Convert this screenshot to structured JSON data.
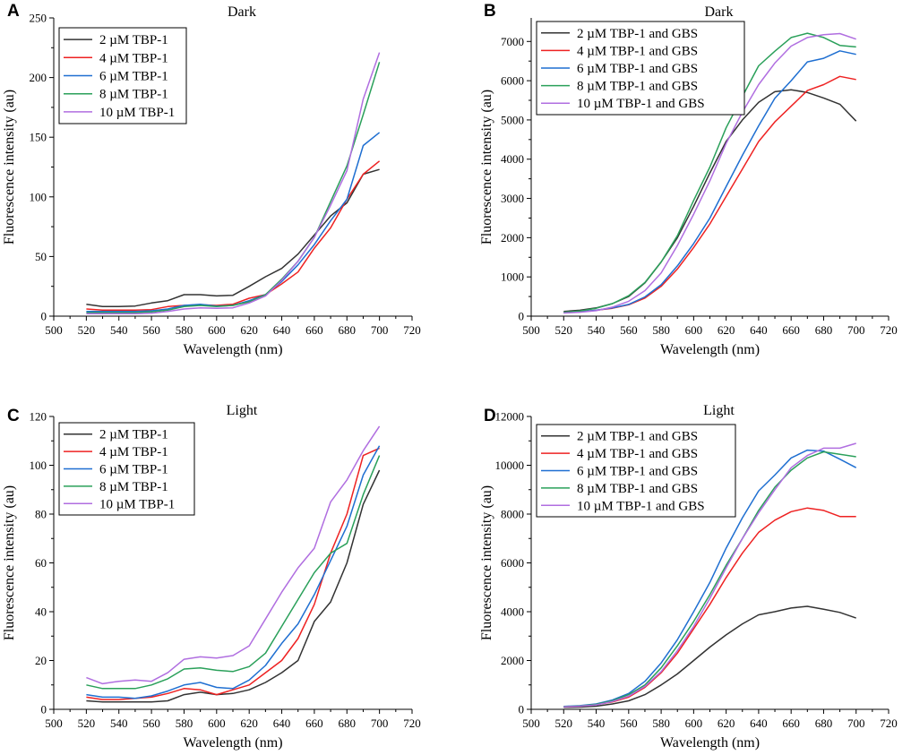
{
  "chart_data": [
    {
      "panel": "A",
      "type": "line",
      "title": "Dark",
      "xlabel": "Wavelength (nm)",
      "ylabel": "Fluorescence intensity (au)",
      "xlim": [
        500,
        720
      ],
      "ylim": [
        0,
        250
      ],
      "xticks": [
        500,
        520,
        540,
        560,
        580,
        600,
        620,
        640,
        660,
        680,
        700,
        720
      ],
      "yticks": [
        0,
        50,
        100,
        150,
        200,
        250
      ],
      "legend_position": "top-left",
      "x": [
        520,
        530,
        540,
        550,
        560,
        570,
        580,
        590,
        600,
        610,
        620,
        630,
        640,
        650,
        660,
        670,
        680,
        690,
        700
      ],
      "series": [
        {
          "name": "2 µM TBP-1",
          "color": "#333333",
          "values": [
            10,
            8,
            8,
            8.5,
            11,
            13,
            18,
            18,
            17,
            17.5,
            25,
            33,
            40,
            52,
            68,
            84,
            95,
            119,
            123
          ]
        },
        {
          "name": "4 µM TBP-1",
          "color": "#ee2222",
          "values": [
            6,
            5,
            5,
            5,
            5.5,
            8,
            9,
            9.5,
            9,
            10,
            15,
            18,
            27,
            37,
            57,
            74,
            98,
            119,
            130
          ]
        },
        {
          "name": "6 µM TBP-1",
          "color": "#1f6fd1",
          "values": [
            4,
            4,
            4,
            4,
            4.5,
            6,
            9,
            10,
            8.5,
            9,
            13,
            18,
            29,
            43,
            60,
            80,
            98,
            143,
            154
          ]
        },
        {
          "name": "8 µM TBP-1",
          "color": "#2aa05a",
          "values": [
            3,
            3,
            3,
            3,
            3.5,
            5,
            8,
            9,
            8,
            9,
            12,
            18,
            31,
            46,
            66,
            96,
            126,
            169,
            213
          ]
        },
        {
          "name": "10 µM TBP-1",
          "color": "#b06ee0",
          "values": [
            2,
            2,
            2,
            2,
            2.5,
            4,
            6,
            7,
            6.5,
            7,
            11,
            17,
            30,
            46,
            66,
            93,
            122,
            182,
            221
          ]
        }
      ]
    },
    {
      "panel": "B",
      "type": "line",
      "title": "Dark",
      "xlabel": "Wavelength (nm)",
      "ylabel": "Fluorescence intensity (au)",
      "xlim": [
        500,
        720
      ],
      "ylim": [
        0,
        7600
      ],
      "xticks": [
        500,
        520,
        540,
        560,
        580,
        600,
        620,
        640,
        660,
        680,
        700,
        720
      ],
      "yticks": [
        0,
        1000,
        2000,
        3000,
        4000,
        5000,
        6000,
        7000
      ],
      "legend_position": "top-left",
      "x": [
        520,
        530,
        540,
        550,
        560,
        570,
        580,
        590,
        600,
        610,
        620,
        630,
        640,
        650,
        660,
        670,
        680,
        690,
        700
      ],
      "series": [
        {
          "name": "2 µM TBP-1 and GBS",
          "color": "#333333",
          "values": [
            120,
            150,
            210,
            320,
            500,
            850,
            1380,
            2000,
            2800,
            3650,
            4450,
            5000,
            5450,
            5720,
            5770,
            5700,
            5560,
            5400,
            4970
          ]
        },
        {
          "name": "4 µM TBP-1 and GBS",
          "color": "#ee2222",
          "values": [
            90,
            110,
            150,
            200,
            290,
            460,
            760,
            1200,
            1750,
            2350,
            3050,
            3750,
            4450,
            4950,
            5350,
            5750,
            5900,
            6110,
            6030
          ]
        },
        {
          "name": "6 µM TBP-1 and GBS",
          "color": "#1f6fd1",
          "values": [
            90,
            110,
            150,
            210,
            300,
            490,
            800,
            1280,
            1850,
            2500,
            3300,
            4100,
            4850,
            5550,
            6000,
            6480,
            6570,
            6760,
            6670
          ]
        },
        {
          "name": "8 µM TBP-1 and GBS",
          "color": "#2aa05a",
          "values": [
            100,
            130,
            200,
            320,
            520,
            860,
            1380,
            2050,
            2950,
            3800,
            4800,
            5600,
            6380,
            6750,
            7100,
            7210,
            7100,
            6900,
            6860
          ]
        },
        {
          "name": "10 µM TBP-1 and GBS",
          "color": "#b06ee0",
          "values": [
            80,
            100,
            140,
            230,
            380,
            650,
            1100,
            1800,
            2600,
            3450,
            4400,
            5200,
            5900,
            6450,
            6880,
            7100,
            7170,
            7200,
            7060
          ]
        }
      ]
    },
    {
      "panel": "C",
      "type": "line",
      "title": "Light",
      "xlabel": "Wavelength (nm)",
      "ylabel": "Fluorescence intensity (au)",
      "xlim": [
        500,
        720
      ],
      "ylim": [
        0,
        120
      ],
      "xticks": [
        500,
        520,
        540,
        560,
        580,
        600,
        620,
        640,
        660,
        680,
        700,
        720
      ],
      "yticks": [
        0,
        20,
        40,
        60,
        80,
        100,
        120
      ],
      "legend_position": "top-left",
      "x": [
        520,
        530,
        540,
        550,
        560,
        570,
        580,
        590,
        600,
        610,
        620,
        630,
        640,
        650,
        660,
        670,
        680,
        690,
        700
      ],
      "series": [
        {
          "name": "2 µM TBP-1",
          "color": "#333333",
          "values": [
            3.5,
            3,
            3,
            3,
            3,
            3.5,
            6,
            7,
            6,
            6.5,
            8,
            11,
            15,
            20,
            36,
            44,
            60,
            84,
            98
          ]
        },
        {
          "name": "4 µM TBP-1",
          "color": "#ee2222",
          "values": [
            5,
            4,
            4,
            4.5,
            5,
            6.5,
            8.5,
            8,
            6,
            8,
            10,
            15,
            20,
            29,
            43,
            64,
            80,
            104,
            107
          ]
        },
        {
          "name": "6 µM TBP-1",
          "color": "#1f6fd1",
          "values": [
            6,
            5,
            5,
            4.5,
            5.5,
            7.5,
            10,
            11,
            9,
            8.5,
            12,
            18,
            27,
            35,
            47,
            61,
            75,
            96,
            108
          ]
        },
        {
          "name": "8 µM TBP-1",
          "color": "#2aa05a",
          "values": [
            10,
            8.5,
            8.5,
            8.5,
            10,
            12.5,
            16.5,
            17,
            16,
            15.5,
            17.5,
            23,
            34,
            45,
            56,
            64,
            68,
            88,
            104
          ]
        },
        {
          "name": "10 µM TBP-1",
          "color": "#b06ee0",
          "values": [
            13,
            10.5,
            11.5,
            12,
            11.5,
            15,
            20.5,
            21.5,
            21,
            22,
            26,
            37,
            48,
            58,
            66,
            85,
            94,
            106,
            116
          ]
        }
      ]
    },
    {
      "panel": "D",
      "type": "line",
      "title": "Light",
      "xlabel": "Wavelength (nm)",
      "ylabel": "Fluorescence intensity (au)",
      "xlim": [
        500,
        720
      ],
      "ylim": [
        0,
        12000
      ],
      "xticks": [
        500,
        520,
        540,
        560,
        580,
        600,
        620,
        640,
        660,
        680,
        700,
        720
      ],
      "yticks": [
        0,
        2000,
        4000,
        6000,
        8000,
        10000,
        12000
      ],
      "legend_position": "top-left",
      "x": [
        520,
        530,
        540,
        550,
        560,
        570,
        580,
        590,
        600,
        610,
        620,
        630,
        640,
        650,
        660,
        670,
        680,
        690,
        700
      ],
      "series": [
        {
          "name": "2 µM TBP-1 and GBS",
          "color": "#333333",
          "values": [
            80,
            90,
            130,
            220,
            350,
            600,
            1000,
            1450,
            2000,
            2550,
            3050,
            3500,
            3870,
            4000,
            4150,
            4220,
            4100,
            3970,
            3740
          ]
        },
        {
          "name": "4 µM TBP-1 and GBS",
          "color": "#ee2222",
          "values": [
            100,
            130,
            190,
            300,
            500,
            900,
            1500,
            2300,
            3300,
            4300,
            5400,
            6400,
            7250,
            7750,
            8100,
            8250,
            8150,
            7900,
            7900
          ]
        },
        {
          "name": "6 µM TBP-1 and GBS",
          "color": "#1f6fd1",
          "values": [
            120,
            150,
            220,
            380,
            650,
            1150,
            1900,
            2850,
            4000,
            5200,
            6600,
            7850,
            8950,
            9600,
            10300,
            10620,
            10580,
            10250,
            9900
          ]
        },
        {
          "name": "8 µM TBP-1 and GBS",
          "color": "#2aa05a",
          "values": [
            110,
            140,
            200,
            350,
            600,
            1000,
            1700,
            2600,
            3600,
            4700,
            5900,
            7000,
            8150,
            9100,
            9800,
            10300,
            10550,
            10450,
            10350
          ]
        },
        {
          "name": "10 µM TBP-1 and GBS",
          "color": "#b06ee0",
          "values": [
            100,
            130,
            180,
            320,
            540,
            940,
            1550,
            2400,
            3400,
            4550,
            5800,
            7000,
            8050,
            9000,
            9900,
            10400,
            10700,
            10700,
            10900
          ]
        }
      ]
    }
  ]
}
